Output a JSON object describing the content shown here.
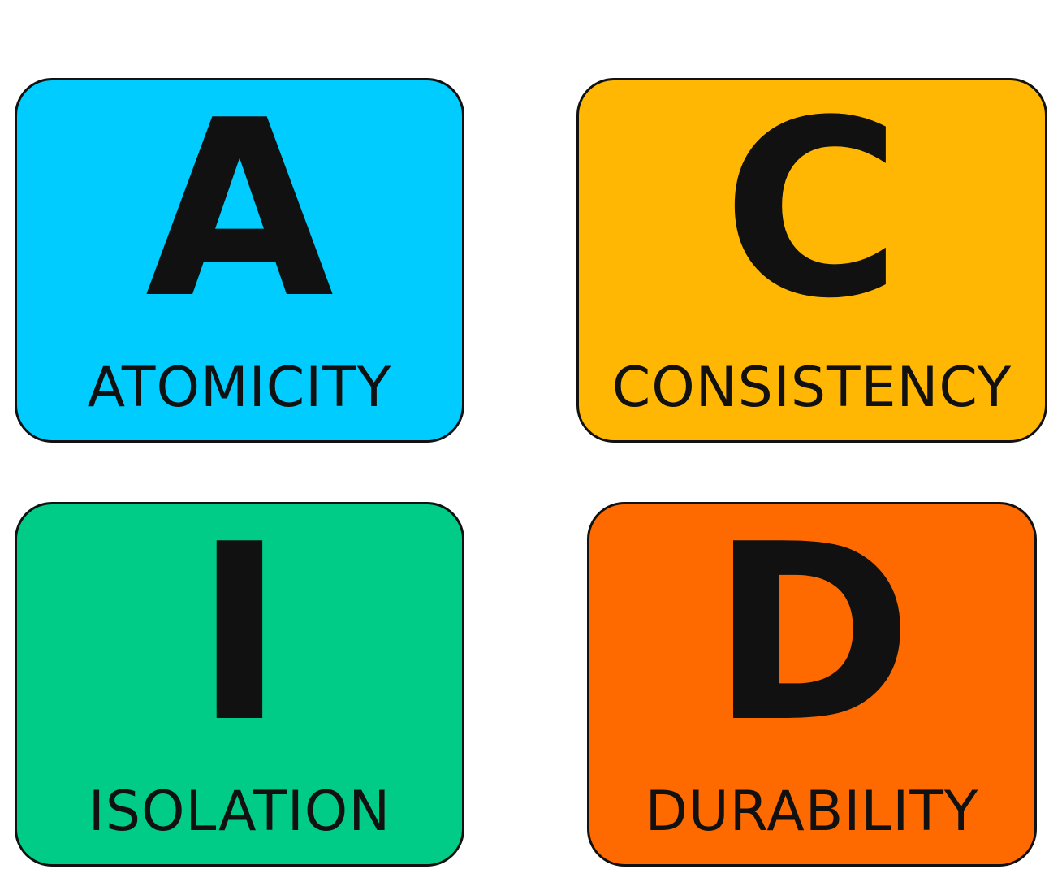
{
  "cards": [
    {
      "letter": "A",
      "word": "ATOMICITY",
      "color": "#00CCFF"
    },
    {
      "letter": "C",
      "word": "CONSISTENCY",
      "color": "#FFB703"
    },
    {
      "letter": "I",
      "word": "ISOLATION",
      "color": "#00CC88"
    },
    {
      "letter": "D",
      "word": "DURABILITY",
      "color": "#FF6A00"
    }
  ]
}
